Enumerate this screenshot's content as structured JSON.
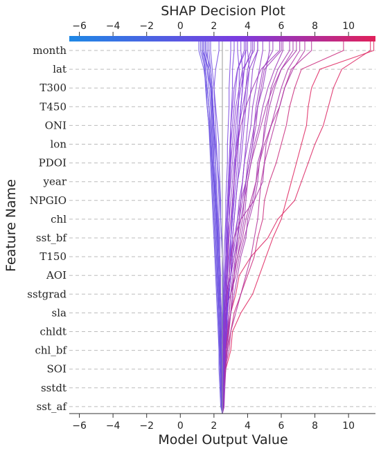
{
  "chart_data": {
    "type": "line",
    "title": "SHAP Decision Plot",
    "xlabel": "Model Output Value",
    "ylabel": "Feature Name",
    "xlim": [
      -6.6,
      11.6
    ],
    "x_ticks": [
      -6,
      -4,
      -2,
      0,
      2,
      4,
      6,
      8,
      10
    ],
    "features": [
      "month",
      "lat",
      "T300",
      "T450",
      "ONI",
      "lon",
      "PDOI",
      "year",
      "NPGIO",
      "chl",
      "sst_bf",
      "T150",
      "AOI",
      "sstgrad",
      "sla",
      "chldt",
      "chl_bf",
      "SOI",
      "sstdt",
      "sst_af"
    ],
    "base_value": 2.5,
    "colorbar": {
      "from": "#1e88e5",
      "mid": "#7b3ce0",
      "to": "#e0205a"
    },
    "grid": "horizontal-dashed",
    "series": [
      {
        "values": [
          2.55,
          2.6,
          2.62,
          2.7,
          2.85,
          3.0,
          3.3,
          3.5,
          4.2,
          5.2,
          5.8,
          6.8,
          7.2,
          7.6,
          8.0,
          8.5,
          8.8,
          9.1,
          9.6,
          11.3
        ]
      },
      {
        "values": [
          2.55,
          2.6,
          2.7,
          3.0,
          3.1,
          3.6,
          4.3,
          4.7,
          5.1,
          5.5,
          6.0,
          6.3,
          6.6,
          6.9,
          7.2,
          7.5,
          7.6,
          7.8,
          8.3,
          11.5
        ]
      },
      {
        "values": [
          2.5,
          2.55,
          2.6,
          2.8,
          3.0,
          3.2,
          3.6,
          4.0,
          4.4,
          4.6,
          4.9,
          5.0,
          5.3,
          5.7,
          6.0,
          6.3,
          6.5,
          6.8,
          7.2,
          9.7
        ]
      },
      {
        "values": [
          2.55,
          2.6,
          2.65,
          2.9,
          3.0,
          3.3,
          3.6,
          3.9,
          4.2,
          4.4,
          4.6,
          4.7,
          4.8,
          5.0,
          5.3,
          5.6,
          5.9,
          6.2,
          6.6,
          7.8
        ]
      },
      {
        "values": [
          2.5,
          2.45,
          2.5,
          2.55,
          2.5,
          2.6,
          3.0,
          3.3,
          3.5,
          3.8,
          4.1,
          4.4,
          4.6,
          4.7,
          4.9,
          5.1,
          5.3,
          5.6,
          6.0,
          6.7
        ]
      },
      {
        "values": [
          2.6,
          2.55,
          2.6,
          2.7,
          2.8,
          3.0,
          3.2,
          3.4,
          3.6,
          3.9,
          4.0,
          4.3,
          4.5,
          4.6,
          4.9,
          5.0,
          5.2,
          5.4,
          5.8,
          6.5
        ]
      },
      {
        "values": [
          2.5,
          2.45,
          2.5,
          2.5,
          2.55,
          2.6,
          2.7,
          3.0,
          3.2,
          3.4,
          3.5,
          3.6,
          3.9,
          4.1,
          4.3,
          4.5,
          4.6,
          4.8,
          5.0,
          6.0
        ]
      },
      {
        "values": [
          2.6,
          2.65,
          2.7,
          2.8,
          2.9,
          3.0,
          3.1,
          3.2,
          3.4,
          3.6,
          3.8,
          3.9,
          4.0,
          4.2,
          4.4,
          4.7,
          4.9,
          5.2,
          5.6,
          6.1
        ]
      },
      {
        "values": [
          2.5,
          2.55,
          2.5,
          2.6,
          2.7,
          2.8,
          2.9,
          3.0,
          3.2,
          3.4,
          3.5,
          3.7,
          3.9,
          4.0,
          4.2,
          4.4,
          4.5,
          4.7,
          4.9,
          5.5
        ]
      },
      {
        "values": [
          2.55,
          2.5,
          2.6,
          2.65,
          2.75,
          2.9,
          3.0,
          3.1,
          3.3,
          3.4,
          3.6,
          3.8,
          3.9,
          4.1,
          4.3,
          4.4,
          4.6,
          4.9,
          5.1,
          5.3
        ]
      },
      {
        "values": [
          2.45,
          2.5,
          2.55,
          2.6,
          2.7,
          2.75,
          2.9,
          3.0,
          3.1,
          3.3,
          3.4,
          3.6,
          3.7,
          3.8,
          4.0,
          4.2,
          4.3,
          4.5,
          4.7,
          4.9
        ]
      },
      {
        "values": [
          2.6,
          2.55,
          2.6,
          2.7,
          2.75,
          2.8,
          2.9,
          3.0,
          3.1,
          3.2,
          3.4,
          3.5,
          3.7,
          3.8,
          3.9,
          4.0,
          4.1,
          4.2,
          4.3,
          4.6
        ]
      },
      {
        "values": [
          2.5,
          2.55,
          2.6,
          2.6,
          2.7,
          2.8,
          2.85,
          2.9,
          3.0,
          3.1,
          3.2,
          3.3,
          3.4,
          3.5,
          3.6,
          3.7,
          3.8,
          3.9,
          4.0,
          4.3
        ]
      },
      {
        "values": [
          2.55,
          2.6,
          2.6,
          2.65,
          2.7,
          2.8,
          2.9,
          3.0,
          3.05,
          3.1,
          3.2,
          3.3,
          3.4,
          3.6,
          3.7,
          3.8,
          3.9,
          4.0,
          4.1,
          4.0
        ]
      },
      {
        "values": [
          2.5,
          2.5,
          2.55,
          2.6,
          2.65,
          2.7,
          2.75,
          2.8,
          2.9,
          3.0,
          3.1,
          3.2,
          3.3,
          3.4,
          3.45,
          3.5,
          3.6,
          3.7,
          3.8,
          3.9
        ]
      },
      {
        "values": [
          2.6,
          2.6,
          2.65,
          2.7,
          2.7,
          2.75,
          2.8,
          2.9,
          3.0,
          3.0,
          3.1,
          3.15,
          3.2,
          3.3,
          3.4,
          3.5,
          3.6,
          3.7,
          3.7,
          3.6
        ]
      },
      {
        "values": [
          2.55,
          2.6,
          2.6,
          2.7,
          2.75,
          2.8,
          2.85,
          2.9,
          2.95,
          3.0,
          3.05,
          3.1,
          3.2,
          3.25,
          3.3,
          3.4,
          3.45,
          3.5,
          3.5,
          3.4
        ]
      },
      {
        "values": [
          2.5,
          2.5,
          2.55,
          2.55,
          2.6,
          2.6,
          2.65,
          2.7,
          2.7,
          2.75,
          2.8,
          2.85,
          2.9,
          2.95,
          3.0,
          3.0,
          3.05,
          3.1,
          3.1,
          3.2
        ]
      },
      {
        "values": [
          2.45,
          2.45,
          2.5,
          2.5,
          2.5,
          2.55,
          2.55,
          2.6,
          2.6,
          2.65,
          2.7,
          2.7,
          2.75,
          2.8,
          2.8,
          2.85,
          2.9,
          2.9,
          2.95,
          3.0
        ]
      },
      {
        "values": [
          2.5,
          2.45,
          2.45,
          2.4,
          2.4,
          2.4,
          2.35,
          2.35,
          2.3,
          2.3,
          2.25,
          2.2,
          2.15,
          2.1,
          2.05,
          2.0,
          1.95,
          1.9,
          1.8,
          1.7
        ]
      },
      {
        "values": [
          2.5,
          2.5,
          2.45,
          2.45,
          2.4,
          2.4,
          2.35,
          2.3,
          2.3,
          2.25,
          2.2,
          2.1,
          2.05,
          2.0,
          1.95,
          1.9,
          1.85,
          1.8,
          1.7,
          1.6
        ]
      },
      {
        "values": [
          2.45,
          2.4,
          2.4,
          2.35,
          2.35,
          2.3,
          2.3,
          2.25,
          2.2,
          2.2,
          2.15,
          2.1,
          2.0,
          1.95,
          1.9,
          1.85,
          1.8,
          1.7,
          1.6,
          1.5
        ]
      },
      {
        "values": [
          2.5,
          2.45,
          2.4,
          2.35,
          2.3,
          2.3,
          2.25,
          2.2,
          2.15,
          2.1,
          2.05,
          2.0,
          1.95,
          1.9,
          1.8,
          1.75,
          1.7,
          1.6,
          1.5,
          1.4
        ]
      },
      {
        "values": [
          2.45,
          2.4,
          2.35,
          2.3,
          2.3,
          2.25,
          2.2,
          2.15,
          2.1,
          2.05,
          2.0,
          1.95,
          1.9,
          1.85,
          1.8,
          1.7,
          1.6,
          1.5,
          1.45,
          1.3
        ]
      },
      {
        "values": [
          2.5,
          2.45,
          2.4,
          2.4,
          2.35,
          2.3,
          2.25,
          2.2,
          2.2,
          2.15,
          2.1,
          2.05,
          2.0,
          1.9,
          1.85,
          1.8,
          1.7,
          1.6,
          1.5,
          1.2
        ]
      },
      {
        "values": [
          2.4,
          2.35,
          2.3,
          2.3,
          2.25,
          2.2,
          2.15,
          2.1,
          2.05,
          2.0,
          1.95,
          1.9,
          1.85,
          1.8,
          1.75,
          1.7,
          1.6,
          1.55,
          1.4,
          1.1
        ]
      },
      {
        "values": [
          2.5,
          2.5,
          2.45,
          2.4,
          2.4,
          2.35,
          2.3,
          2.3,
          2.25,
          2.2,
          2.15,
          2.1,
          2.05,
          2.0,
          2.0,
          1.95,
          1.9,
          1.85,
          1.7,
          1.3
        ]
      },
      {
        "values": [
          2.55,
          2.5,
          2.5,
          2.45,
          2.4,
          2.4,
          2.35,
          2.3,
          2.3,
          2.25,
          2.2,
          2.15,
          2.1,
          2.1,
          2.05,
          2.0,
          1.95,
          1.9,
          1.8,
          1.5
        ]
      },
      {
        "values": [
          2.5,
          2.55,
          2.6,
          2.6,
          2.65,
          2.7,
          2.8,
          2.9,
          3.0,
          3.2,
          3.6,
          4.4,
          4.9,
          5.0,
          5.1,
          5.4,
          5.7,
          6.0,
          6.4,
          7.1
        ]
      },
      {
        "values": [
          2.55,
          2.6,
          2.65,
          2.75,
          2.85,
          3.0,
          3.1,
          3.2,
          3.4,
          3.7,
          3.9,
          4.2,
          4.5,
          4.7,
          5.0,
          5.4,
          5.9,
          6.2,
          6.7,
          7.4
        ]
      },
      {
        "values": [
          2.6,
          2.6,
          2.7,
          2.7,
          2.8,
          2.9,
          3.0,
          3.2,
          3.3,
          3.5,
          3.7,
          3.8,
          4.0,
          4.2,
          4.5,
          4.8,
          5.1,
          5.5,
          6.0,
          6.9
        ]
      },
      {
        "values": [
          2.5,
          2.5,
          2.5,
          2.55,
          2.6,
          2.7,
          2.75,
          2.8,
          2.85,
          2.9,
          3.0,
          3.1,
          3.2,
          3.3,
          3.4,
          3.6,
          3.9,
          4.3,
          4.8,
          5.9
        ]
      },
      {
        "values": [
          2.5,
          2.45,
          2.5,
          2.5,
          2.55,
          2.6,
          2.6,
          2.7,
          2.7,
          2.8,
          2.9,
          2.9,
          3.0,
          3.1,
          3.2,
          3.3,
          3.4,
          3.6,
          3.8,
          4.2
        ]
      },
      {
        "values": [
          2.55,
          2.55,
          2.6,
          2.6,
          2.6,
          2.65,
          2.7,
          2.7,
          2.75,
          2.8,
          2.8,
          2.85,
          2.9,
          3.0,
          3.0,
          3.1,
          3.2,
          3.3,
          3.4,
          3.8
        ]
      },
      {
        "values": [
          2.45,
          2.45,
          2.4,
          2.4,
          2.45,
          2.5,
          2.5,
          2.55,
          2.5,
          2.45,
          2.4,
          2.4,
          2.35,
          2.3,
          2.3,
          2.2,
          2.1,
          2.0,
          1.9,
          1.8
        ]
      },
      {
        "values": [
          2.5,
          2.5,
          2.55,
          2.5,
          2.45,
          2.45,
          2.4,
          2.4,
          2.35,
          2.35,
          2.3,
          2.3,
          2.25,
          2.2,
          2.15,
          2.1,
          2.05,
          2.0,
          2.1,
          2.3
        ]
      },
      {
        "values": [
          2.55,
          2.55,
          2.6,
          2.65,
          2.7,
          2.7,
          2.75,
          2.8,
          2.8,
          2.85,
          2.9,
          2.9,
          2.95,
          3.0,
          3.1,
          3.2,
          3.3,
          3.5,
          3.7,
          4.4
        ]
      },
      {
        "values": [
          2.5,
          2.5,
          2.5,
          2.55,
          2.55,
          2.6,
          2.6,
          2.65,
          2.7,
          2.7,
          2.75,
          2.8,
          2.85,
          2.9,
          2.95,
          3.0,
          3.1,
          3.2,
          3.4,
          3.9
        ]
      },
      {
        "values": [
          2.45,
          2.5,
          2.5,
          2.5,
          2.5,
          2.55,
          2.55,
          2.5,
          2.5,
          2.45,
          2.4,
          2.35,
          2.3,
          2.2,
          2.1,
          2.0,
          1.9,
          1.8,
          1.6,
          1.4
        ]
      },
      {
        "values": [
          2.55,
          2.6,
          2.6,
          2.6,
          2.65,
          2.65,
          2.7,
          2.75,
          2.8,
          2.85,
          2.9,
          3.0,
          3.1,
          3.2,
          3.35,
          3.5,
          3.7,
          3.9,
          4.1,
          4.6
        ]
      }
    ]
  }
}
